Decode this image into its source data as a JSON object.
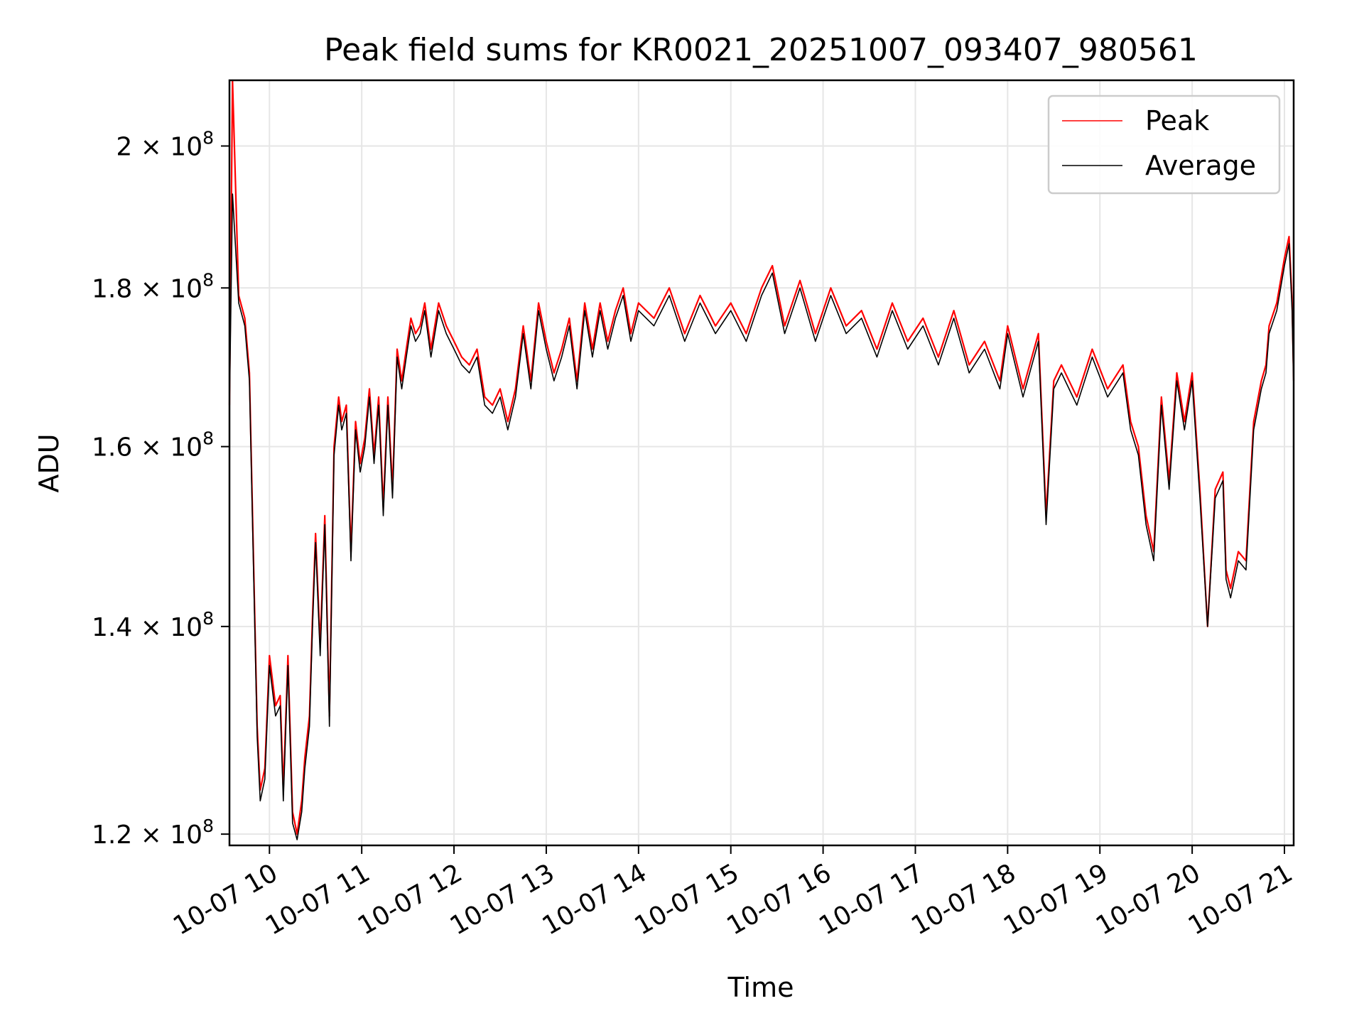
{
  "chart_data": {
    "type": "line",
    "title": "Peak field sums for KR0021_20251007_093407_980561",
    "xlabel": "Time",
    "ylabel": "ADU",
    "y_scale": "log",
    "xlim": [
      "2025-10-07 09:34",
      "2025-10-07 21:06"
    ],
    "ylim": [
      119000000,
      210000000
    ],
    "grid": true,
    "legend_position": "top-right",
    "x_ticks": [
      {
        "value": "2025-10-07 10:00",
        "label": "10-07 10"
      },
      {
        "value": "2025-10-07 11:00",
        "label": "10-07 11"
      },
      {
        "value": "2025-10-07 12:00",
        "label": "10-07 12"
      },
      {
        "value": "2025-10-07 13:00",
        "label": "10-07 13"
      },
      {
        "value": "2025-10-07 14:00",
        "label": "10-07 14"
      },
      {
        "value": "2025-10-07 15:00",
        "label": "10-07 15"
      },
      {
        "value": "2025-10-07 16:00",
        "label": "10-07 16"
      },
      {
        "value": "2025-10-07 17:00",
        "label": "10-07 17"
      },
      {
        "value": "2025-10-07 18:00",
        "label": "10-07 18"
      },
      {
        "value": "2025-10-07 19:00",
        "label": "10-07 19"
      },
      {
        "value": "2025-10-07 20:00",
        "label": "10-07 20"
      },
      {
        "value": "2025-10-07 21:00",
        "label": "10-07 21"
      }
    ],
    "y_ticks": [
      {
        "value": 120000000,
        "mantissa": "1.2",
        "exponent": "8"
      },
      {
        "value": 140000000,
        "mantissa": "1.4",
        "exponent": "8"
      },
      {
        "value": 160000000,
        "mantissa": "1.6",
        "exponent": "8"
      },
      {
        "value": 180000000,
        "mantissa": "1.8",
        "exponent": "8"
      },
      {
        "value": 200000000,
        "mantissa": "2",
        "exponent": "8"
      }
    ],
    "series": [
      {
        "name": "Peak",
        "color": "#ff0000",
        "x": [
          "2025-10-07 09:34",
          "2025-10-07 09:36",
          "2025-10-07 09:40",
          "2025-10-07 09:44",
          "2025-10-07 09:47",
          "2025-10-07 09:49",
          "2025-10-07 09:52",
          "2025-10-07 09:54",
          "2025-10-07 09:57",
          "2025-10-07 10:00",
          "2025-10-07 10:04",
          "2025-10-07 10:07",
          "2025-10-07 10:09",
          "2025-10-07 10:12",
          "2025-10-07 10:15",
          "2025-10-07 10:18",
          "2025-10-07 10:21",
          "2025-10-07 10:23",
          "2025-10-07 10:26",
          "2025-10-07 10:28",
          "2025-10-07 10:30",
          "2025-10-07 10:33",
          "2025-10-07 10:36",
          "2025-10-07 10:39",
          "2025-10-07 10:42",
          "2025-10-07 10:45",
          "2025-10-07 10:47",
          "2025-10-07 10:50",
          "2025-10-07 10:53",
          "2025-10-07 10:56",
          "2025-10-07 10:59",
          "2025-10-07 11:02",
          "2025-10-07 11:05",
          "2025-10-07 11:08",
          "2025-10-07 11:11",
          "2025-10-07 11:14",
          "2025-10-07 11:17",
          "2025-10-07 11:20",
          "2025-10-07 11:23",
          "2025-10-07 11:26",
          "2025-10-07 11:29",
          "2025-10-07 11:32",
          "2025-10-07 11:35",
          "2025-10-07 11:38",
          "2025-10-07 11:41",
          "2025-10-07 11:45",
          "2025-10-07 11:50",
          "2025-10-07 11:55",
          "2025-10-07 12:00",
          "2025-10-07 12:05",
          "2025-10-07 12:10",
          "2025-10-07 12:15",
          "2025-10-07 12:20",
          "2025-10-07 12:25",
          "2025-10-07 12:30",
          "2025-10-07 12:35",
          "2025-10-07 12:40",
          "2025-10-07 12:45",
          "2025-10-07 12:50",
          "2025-10-07 12:55",
          "2025-10-07 13:00",
          "2025-10-07 13:05",
          "2025-10-07 13:10",
          "2025-10-07 13:15",
          "2025-10-07 13:20",
          "2025-10-07 13:25",
          "2025-10-07 13:30",
          "2025-10-07 13:35",
          "2025-10-07 13:40",
          "2025-10-07 13:45",
          "2025-10-07 13:50",
          "2025-10-07 13:55",
          "2025-10-07 14:00",
          "2025-10-07 14:10",
          "2025-10-07 14:20",
          "2025-10-07 14:30",
          "2025-10-07 14:40",
          "2025-10-07 14:50",
          "2025-10-07 15:00",
          "2025-10-07 15:10",
          "2025-10-07 15:20",
          "2025-10-07 15:27",
          "2025-10-07 15:35",
          "2025-10-07 15:45",
          "2025-10-07 15:55",
          "2025-10-07 16:05",
          "2025-10-07 16:15",
          "2025-10-07 16:25",
          "2025-10-07 16:35",
          "2025-10-07 16:45",
          "2025-10-07 16:55",
          "2025-10-07 17:05",
          "2025-10-07 17:15",
          "2025-10-07 17:25",
          "2025-10-07 17:35",
          "2025-10-07 17:45",
          "2025-10-07 17:55",
          "2025-10-07 18:00",
          "2025-10-07 18:10",
          "2025-10-07 18:20",
          "2025-10-07 18:25",
          "2025-10-07 18:30",
          "2025-10-07 18:35",
          "2025-10-07 18:45",
          "2025-10-07 18:55",
          "2025-10-07 19:05",
          "2025-10-07 19:15",
          "2025-10-07 19:20",
          "2025-10-07 19:25",
          "2025-10-07 19:30",
          "2025-10-07 19:35",
          "2025-10-07 19:40",
          "2025-10-07 19:45",
          "2025-10-07 19:50",
          "2025-10-07 19:55",
          "2025-10-07 20:00",
          "2025-10-07 20:05",
          "2025-10-07 20:10",
          "2025-10-07 20:15",
          "2025-10-07 20:20",
          "2025-10-07 20:22",
          "2025-10-07 20:25",
          "2025-10-07 20:30",
          "2025-10-07 20:35",
          "2025-10-07 20:40",
          "2025-10-07 20:45",
          "2025-10-07 20:48",
          "2025-10-07 20:50",
          "2025-10-07 20:55",
          "2025-10-07 21:00",
          "2025-10-07 21:03",
          "2025-10-07 21:05",
          "2025-10-07 21:06"
        ],
        "values": [
          165000000,
          210000000,
          179000000,
          176000000,
          169000000,
          152000000,
          130000000,
          124000000,
          126000000,
          137000000,
          132000000,
          133000000,
          124000000,
          137000000,
          122000000,
          120000000,
          123000000,
          127000000,
          131000000,
          141000000,
          150000000,
          138000000,
          152000000,
          131000000,
          160000000,
          166000000,
          163000000,
          165000000,
          148000000,
          163000000,
          158000000,
          161000000,
          167000000,
          159000000,
          166000000,
          153000000,
          166000000,
          155000000,
          172000000,
          168000000,
          172000000,
          176000000,
          174000000,
          175000000,
          178000000,
          172000000,
          178000000,
          175000000,
          173000000,
          171000000,
          170000000,
          172000000,
          166000000,
          165000000,
          167000000,
          163000000,
          167000000,
          175000000,
          168000000,
          178000000,
          173000000,
          169000000,
          172000000,
          176000000,
          168000000,
          178000000,
          172000000,
          178000000,
          173000000,
          177000000,
          180000000,
          174000000,
          178000000,
          176000000,
          180000000,
          174000000,
          179000000,
          175000000,
          178000000,
          174000000,
          180000000,
          183000000,
          175000000,
          181000000,
          174000000,
          180000000,
          175000000,
          177000000,
          172000000,
          178000000,
          173000000,
          176000000,
          171000000,
          177000000,
          170000000,
          173000000,
          168000000,
          175000000,
          167000000,
          174000000,
          152000000,
          168000000,
          170000000,
          166000000,
          172000000,
          167000000,
          170000000,
          163000000,
          160000000,
          152000000,
          148000000,
          166000000,
          156000000,
          169000000,
          163000000,
          169000000,
          155000000,
          140000000,
          155000000,
          157000000,
          146000000,
          144000000,
          148000000,
          147000000,
          163000000,
          168000000,
          170000000,
          175000000,
          178000000,
          184000000,
          187000000,
          178000000,
          168000000
        ]
      },
      {
        "name": "Average",
        "color": "#000000",
        "x": [
          "2025-10-07 09:34",
          "2025-10-07 09:36",
          "2025-10-07 09:40",
          "2025-10-07 09:44",
          "2025-10-07 09:47",
          "2025-10-07 09:49",
          "2025-10-07 09:52",
          "2025-10-07 09:54",
          "2025-10-07 09:57",
          "2025-10-07 10:00",
          "2025-10-07 10:04",
          "2025-10-07 10:07",
          "2025-10-07 10:09",
          "2025-10-07 10:12",
          "2025-10-07 10:15",
          "2025-10-07 10:18",
          "2025-10-07 10:21",
          "2025-10-07 10:23",
          "2025-10-07 10:26",
          "2025-10-07 10:28",
          "2025-10-07 10:30",
          "2025-10-07 10:33",
          "2025-10-07 10:36",
          "2025-10-07 10:39",
          "2025-10-07 10:42",
          "2025-10-07 10:45",
          "2025-10-07 10:47",
          "2025-10-07 10:50",
          "2025-10-07 10:53",
          "2025-10-07 10:56",
          "2025-10-07 10:59",
          "2025-10-07 11:02",
          "2025-10-07 11:05",
          "2025-10-07 11:08",
          "2025-10-07 11:11",
          "2025-10-07 11:14",
          "2025-10-07 11:17",
          "2025-10-07 11:20",
          "2025-10-07 11:23",
          "2025-10-07 11:26",
          "2025-10-07 11:29",
          "2025-10-07 11:32",
          "2025-10-07 11:35",
          "2025-10-07 11:38",
          "2025-10-07 11:41",
          "2025-10-07 11:45",
          "2025-10-07 11:50",
          "2025-10-07 11:55",
          "2025-10-07 12:00",
          "2025-10-07 12:05",
          "2025-10-07 12:10",
          "2025-10-07 12:15",
          "2025-10-07 12:20",
          "2025-10-07 12:25",
          "2025-10-07 12:30",
          "2025-10-07 12:35",
          "2025-10-07 12:40",
          "2025-10-07 12:45",
          "2025-10-07 12:50",
          "2025-10-07 12:55",
          "2025-10-07 13:00",
          "2025-10-07 13:05",
          "2025-10-07 13:10",
          "2025-10-07 13:15",
          "2025-10-07 13:20",
          "2025-10-07 13:25",
          "2025-10-07 13:30",
          "2025-10-07 13:35",
          "2025-10-07 13:40",
          "2025-10-07 13:45",
          "2025-10-07 13:50",
          "2025-10-07 13:55",
          "2025-10-07 14:00",
          "2025-10-07 14:10",
          "2025-10-07 14:20",
          "2025-10-07 14:30",
          "2025-10-07 14:40",
          "2025-10-07 14:50",
          "2025-10-07 15:00",
          "2025-10-07 15:10",
          "2025-10-07 15:20",
          "2025-10-07 15:27",
          "2025-10-07 15:35",
          "2025-10-07 15:45",
          "2025-10-07 15:55",
          "2025-10-07 16:05",
          "2025-10-07 16:15",
          "2025-10-07 16:25",
          "2025-10-07 16:35",
          "2025-10-07 16:45",
          "2025-10-07 16:55",
          "2025-10-07 17:05",
          "2025-10-07 17:15",
          "2025-10-07 17:25",
          "2025-10-07 17:35",
          "2025-10-07 17:45",
          "2025-10-07 17:55",
          "2025-10-07 18:00",
          "2025-10-07 18:10",
          "2025-10-07 18:20",
          "2025-10-07 18:25",
          "2025-10-07 18:30",
          "2025-10-07 18:35",
          "2025-10-07 18:45",
          "2025-10-07 18:55",
          "2025-10-07 19:05",
          "2025-10-07 19:15",
          "2025-10-07 19:20",
          "2025-10-07 19:25",
          "2025-10-07 19:30",
          "2025-10-07 19:35",
          "2025-10-07 19:40",
          "2025-10-07 19:45",
          "2025-10-07 19:50",
          "2025-10-07 19:55",
          "2025-10-07 20:00",
          "2025-10-07 20:05",
          "2025-10-07 20:10",
          "2025-10-07 20:15",
          "2025-10-07 20:20",
          "2025-10-07 20:22",
          "2025-10-07 20:25",
          "2025-10-07 20:30",
          "2025-10-07 20:35",
          "2025-10-07 20:40",
          "2025-10-07 20:45",
          "2025-10-07 20:48",
          "2025-10-07 20:50",
          "2025-10-07 20:55",
          "2025-10-07 21:00",
          "2025-10-07 21:03",
          "2025-10-07 21:05",
          "2025-10-07 21:06"
        ],
        "values": [
          165000000,
          193000000,
          178000000,
          175000000,
          168000000,
          151000000,
          129000000,
          123000000,
          125000000,
          136000000,
          131000000,
          132000000,
          123000000,
          136000000,
          121000000,
          119500000,
          122000000,
          126000000,
          130000000,
          140000000,
          149000000,
          137000000,
          151000000,
          130000000,
          159000000,
          165000000,
          162000000,
          164000000,
          147000000,
          162000000,
          157000000,
          160000000,
          166000000,
          158000000,
          165000000,
          152000000,
          165000000,
          154000000,
          171000000,
          167000000,
          171000000,
          175000000,
          173000000,
          174000000,
          177000000,
          171000000,
          177000000,
          174000000,
          172000000,
          170000000,
          169000000,
          171000000,
          165000000,
          164000000,
          166000000,
          162000000,
          166000000,
          174000000,
          167000000,
          177000000,
          172000000,
          168000000,
          171000000,
          175000000,
          167000000,
          177000000,
          171000000,
          177000000,
          172000000,
          176000000,
          179000000,
          173000000,
          177000000,
          175000000,
          179000000,
          173000000,
          178000000,
          174000000,
          177000000,
          173000000,
          179000000,
          182000000,
          174000000,
          180000000,
          173000000,
          179000000,
          174000000,
          176000000,
          171000000,
          177000000,
          172000000,
          175000000,
          170000000,
          176000000,
          169000000,
          172000000,
          167000000,
          174000000,
          166000000,
          173000000,
          151000000,
          167000000,
          169000000,
          165000000,
          171000000,
          166000000,
          169000000,
          162000000,
          159000000,
          151000000,
          147000000,
          165000000,
          155000000,
          168000000,
          162000000,
          168000000,
          154000000,
          140000000,
          154000000,
          156000000,
          145000000,
          143000000,
          147000000,
          146000000,
          162000000,
          167000000,
          169000000,
          174000000,
          177000000,
          183000000,
          186000000,
          177000000,
          167000000
        ]
      }
    ]
  }
}
